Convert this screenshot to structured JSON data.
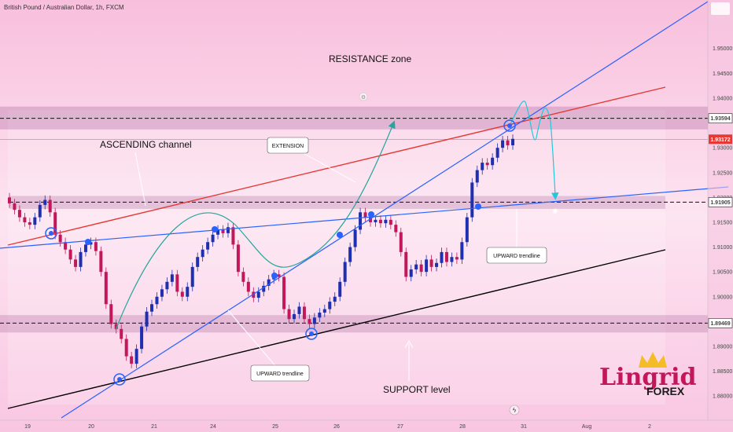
{
  "chart_data": {
    "type": "candlestick",
    "title": "British Pound / Australian Dollar, 1h, FXCM",
    "y_range": [
      1.8775,
      1.9585
    ],
    "y_ticks": [
      "1.95000",
      "1.94500",
      "1.94000",
      "1.93000",
      "1.92500",
      "1.92000",
      "1.91500",
      "1.91000",
      "1.90500",
      "1.90000",
      "1.89500",
      "1.89000",
      "1.88500",
      "1.88000"
    ],
    "x_ticks": [
      "19",
      "20",
      "21",
      "24",
      "25",
      "26",
      "27",
      "28",
      "31",
      "Aug",
      "2"
    ],
    "price_tags": [
      {
        "label": "1.93594",
        "value": 1.93594,
        "style": "box"
      },
      {
        "label": "1.93172",
        "value": 1.93172,
        "style": "red"
      },
      {
        "label": "1.91905",
        "value": 1.91905,
        "style": "box"
      },
      {
        "label": "1.89469",
        "value": 1.89469,
        "style": "box"
      }
    ],
    "zones": [
      {
        "name": "resistance",
        "from": 1.9337,
        "to": 1.9383
      },
      {
        "name": "middle",
        "from": 1.9177,
        "to": 1.9203
      },
      {
        "name": "support",
        "from": 1.8928,
        "to": 1.8963
      }
    ],
    "levels": [
      1.93594,
      1.91905,
      1.89469
    ],
    "annotations": {
      "resistance_zone": "RESISTANCE zone",
      "ascending_channel": "ASCENDING channel",
      "extension": "EXTENSION",
      "upward_trendline_left": "UPWARD trendline",
      "upward_trendline_right": "UPWARD trendline",
      "support_level": "SUPPORT level"
    },
    "candles_close": [
      1.9188,
      1.9175,
      1.916,
      1.915,
      1.9145,
      1.916,
      1.9185,
      1.9195,
      1.917,
      1.9125,
      1.911,
      1.9095,
      1.9075,
      1.906,
      1.909,
      1.9105,
      1.911,
      1.9092,
      1.905,
      1.8985,
      1.8945,
      1.8935,
      1.8915,
      1.888,
      1.8865,
      1.8895,
      1.894,
      1.897,
      1.8985,
      1.9,
      1.9015,
      1.903,
      1.9045,
      1.901,
      1.9,
      1.902,
      1.906,
      1.908,
      1.9095,
      1.911,
      1.9125,
      1.9135,
      1.9128,
      1.914,
      1.9105,
      1.905,
      1.903,
      1.901,
      1.8998,
      1.901,
      1.9022,
      1.9035,
      1.9045,
      1.904,
      1.8975,
      1.8955,
      1.8965,
      1.898,
      1.8955,
      1.8945,
      1.8958,
      1.8968,
      1.8975,
      1.899,
      1.9,
      1.903,
      1.907,
      1.91,
      1.9135,
      1.917,
      1.916,
      1.915,
      1.9155,
      1.9148,
      1.9155,
      1.9145,
      1.913,
      1.909,
      1.904,
      1.9055,
      1.9065,
      1.905,
      1.9075,
      1.906,
      1.9068,
      1.909,
      1.907,
      1.908,
      1.9075,
      1.911,
      1.916,
      1.923,
      1.9255,
      1.927,
      1.9265,
      1.928,
      1.93,
      1.9315,
      1.9305,
      1.9318
    ]
  },
  "logo": {
    "main": "Lingrid",
    "sub": "FOREX"
  },
  "colors": {
    "background": "#fbd3e9",
    "bull": "#1e2fb0",
    "bear": "#c2185b",
    "blue_line": "#2962ff",
    "red_line": "#e53935",
    "projection": "#26c6da",
    "curve": "#26a69a",
    "support_line": "#000000"
  }
}
